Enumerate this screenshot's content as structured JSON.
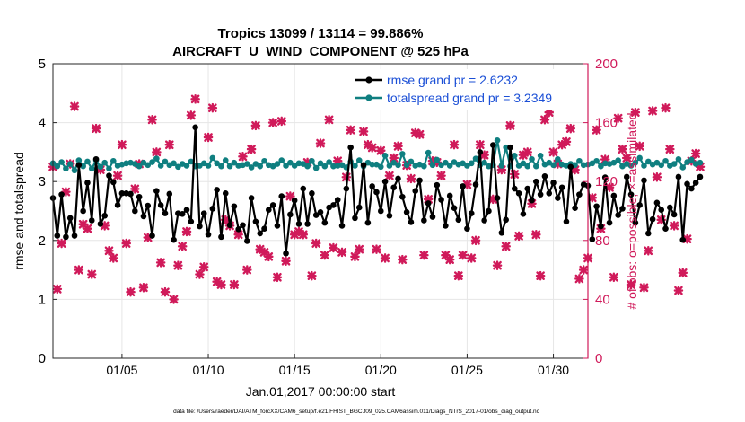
{
  "chart_data": {
    "type": "line",
    "title_line1": "Tropics 13099 / 13114 = 99.886%",
    "title_line2": "AIRCRAFT_U_WIND_COMPONENT @ 525 hPa",
    "xlabel": "Jan.01,2017 00:00:00 start",
    "ylabel_left": "rmse and totalspread",
    "ylabel_right": "# of obs: o=possible; ×=assimilated",
    "footer": "data file: /Users/raeder/DAI/ATM_forcXX/CAM6_setup/f.e21.FHIST_BGC.f09_025.CAM6assim.011/Diags_NTrS_2017-01/obs_diag_output.nc",
    "xlim": [
      1.0,
      32.0
    ],
    "ylim_left": [
      0,
      5
    ],
    "ylim_right": [
      0,
      200
    ],
    "x_ticks": [
      {
        "value": 5,
        "label": "01/05"
      },
      {
        "value": 10,
        "label": "01/10"
      },
      {
        "value": 15,
        "label": "01/15"
      },
      {
        "value": 20,
        "label": "01/20"
      },
      {
        "value": 25,
        "label": "01/25"
      },
      {
        "value": 30,
        "label": "01/30"
      }
    ],
    "y_ticks_left": [
      0,
      1,
      2,
      3,
      4,
      5
    ],
    "y_ticks_right": [
      0,
      40,
      80,
      120,
      160,
      200
    ],
    "grid": true,
    "legend_position": "top-right",
    "colors": {
      "rmse": "#000000",
      "spread": "#0f7f80",
      "obs": "#d01a5a",
      "right_axis": "#d01a5a",
      "legend_text": "#1b4fd6"
    },
    "series": [
      {
        "name": "rmse",
        "legend": "rmse grand pr = 2.6232",
        "x_start": 1.0,
        "x_step": 0.25,
        "values": [
          2.72,
          2.08,
          2.78,
          2.06,
          2.38,
          2.08,
          3.28,
          2.5,
          2.98,
          2.34,
          3.38,
          2.28,
          2.42,
          3.1,
          2.99,
          2.6,
          2.8,
          2.8,
          2.79,
          2.5,
          2.74,
          2.41,
          2.59,
          2.08,
          2.84,
          2.6,
          2.46,
          2.79,
          2.01,
          2.46,
          2.45,
          2.52,
          2.32,
          3.92,
          2.24,
          2.46,
          2.1,
          2.54,
          2.86,
          2.06,
          2.8,
          2.26,
          2.58,
          2.19,
          2.26,
          1.99,
          2.72,
          2.32,
          2.12,
          2.2,
          2.52,
          2.6,
          2.25,
          2.75,
          1.78,
          2.44,
          2.68,
          2.28,
          2.88,
          2.28,
          2.8,
          2.43,
          2.48,
          2.3,
          2.56,
          2.6,
          2.69,
          2.25,
          2.88,
          3.58,
          2.38,
          2.56,
          3.28,
          2.3,
          2.92,
          2.82,
          2.5,
          3.0,
          2.42,
          2.9,
          3.05,
          2.74,
          2.48,
          2.31,
          2.84,
          3.02,
          2.34,
          2.63,
          2.4,
          2.94,
          2.69,
          2.25,
          2.76,
          2.55,
          2.35,
          2.92,
          2.2,
          2.46,
          2.95,
          3.5,
          2.34,
          2.5,
          3.62,
          2.72,
          2.13,
          2.35,
          3.58,
          2.88,
          2.8,
          2.45,
          2.88,
          2.68,
          3.0,
          2.78,
          3.09,
          2.8,
          2.98,
          2.72,
          2.9,
          2.32,
          3.25,
          2.55,
          2.78,
          2.95,
          2.93,
          2.02,
          2.58,
          2.24,
          3.07,
          2.3,
          2.76,
          2.43,
          2.54,
          3.08,
          2.78,
          2.3,
          2.6,
          3.02,
          2.12,
          2.36,
          2.64,
          2.52,
          2.2,
          2.56,
          2.44,
          3.08,
          2.01,
          2.96,
          2.88,
          2.98,
          3.08
        ]
      },
      {
        "name": "totalspread",
        "legend": "totalspread grand pr = 3.2349",
        "x_start": 1.0,
        "x_step": 0.25,
        "values": [
          3.31,
          3.26,
          3.33,
          3.22,
          3.3,
          3.19,
          3.36,
          3.26,
          3.34,
          3.22,
          3.36,
          3.25,
          3.32,
          3.22,
          3.35,
          3.27,
          3.29,
          3.31,
          3.32,
          3.3,
          3.26,
          3.32,
          3.28,
          3.33,
          3.39,
          3.27,
          3.34,
          3.28,
          3.31,
          3.25,
          3.3,
          3.27,
          3.34,
          3.26,
          3.27,
          3.31,
          3.27,
          3.4,
          3.31,
          3.26,
          3.36,
          3.26,
          3.32,
          3.27,
          3.28,
          3.3,
          3.24,
          3.3,
          3.26,
          3.35,
          3.28,
          3.26,
          3.3,
          3.36,
          3.27,
          3.32,
          3.27,
          3.31,
          3.3,
          3.26,
          3.35,
          3.23,
          3.31,
          3.26,
          3.33,
          3.26,
          3.27,
          3.28,
          3.24,
          3.34,
          3.27,
          3.36,
          3.26,
          3.32,
          3.29,
          3.29,
          3.25,
          3.44,
          3.27,
          3.32,
          3.28,
          3.47,
          3.28,
          3.34,
          3.27,
          3.29,
          3.26,
          3.49,
          3.28,
          3.37,
          3.28,
          3.32,
          3.27,
          3.33,
          3.29,
          3.31,
          3.27,
          3.31,
          3.39,
          3.28,
          3.32,
          3.26,
          3.28,
          3.7,
          3.27,
          3.58,
          3.26,
          3.44,
          3.27,
          3.31,
          3.26,
          3.38,
          3.26,
          3.44,
          3.29,
          3.32,
          3.28,
          3.38,
          3.29,
          3.27,
          3.3,
          3.28,
          3.35,
          3.28,
          3.29,
          3.31,
          3.35,
          3.26,
          3.31,
          3.3,
          3.32,
          3.36,
          3.26,
          3.3,
          3.27,
          3.32,
          3.4,
          3.27,
          3.34,
          3.29,
          3.32,
          3.28,
          3.35,
          3.27,
          3.3,
          3.38,
          3.24,
          3.33,
          3.37,
          3.3,
          3.32
        ]
      },
      {
        "name": "obs_count",
        "axis": "right",
        "x_start": 1.0,
        "x_step": 0.25,
        "values": [
          130,
          47,
          78,
          113,
          132,
          171,
          60,
          91,
          88,
          57,
          156,
          128,
          90,
          73,
          68,
          124,
          145,
          78,
          45,
          115,
          132,
          48,
          82,
          162,
          140,
          65,
          45,
          145,
          40,
          63,
          76,
          86,
          165,
          176,
          57,
          62,
          150,
          170,
          52,
          50,
          94,
          90,
          50,
          84,
          137,
          60,
          142,
          158,
          74,
          72,
          69,
          160,
          55,
          161,
          66,
          110,
          84,
          86,
          84,
          133,
          56,
          78,
          146,
          70,
          162,
          75,
          134,
          72,
          123,
          155,
          69,
          74,
          154,
          145,
          143,
          74,
          141,
          68,
          124,
          136,
          144,
          67,
          131,
          122,
          153,
          152,
          70,
          108,
          134,
          133,
          124,
          70,
          67,
          145,
          56,
          70,
          118,
          68,
          80,
          145,
          138,
          174,
          108,
          63,
          128,
          76,
          158,
          125,
          83,
          138,
          140,
          105,
          84,
          56,
          162,
          167,
          140,
          132,
          145,
          147,
          156,
          128,
          54,
          60,
          68,
          109,
          155,
          88,
          135,
          116,
          55,
          163,
          142,
          136,
          50,
          167,
          144,
          48,
          73,
          168,
          123,
          94,
          170,
          142,
          90,
          46,
          58,
          81,
          134,
          139,
          130
        ]
      }
    ]
  }
}
